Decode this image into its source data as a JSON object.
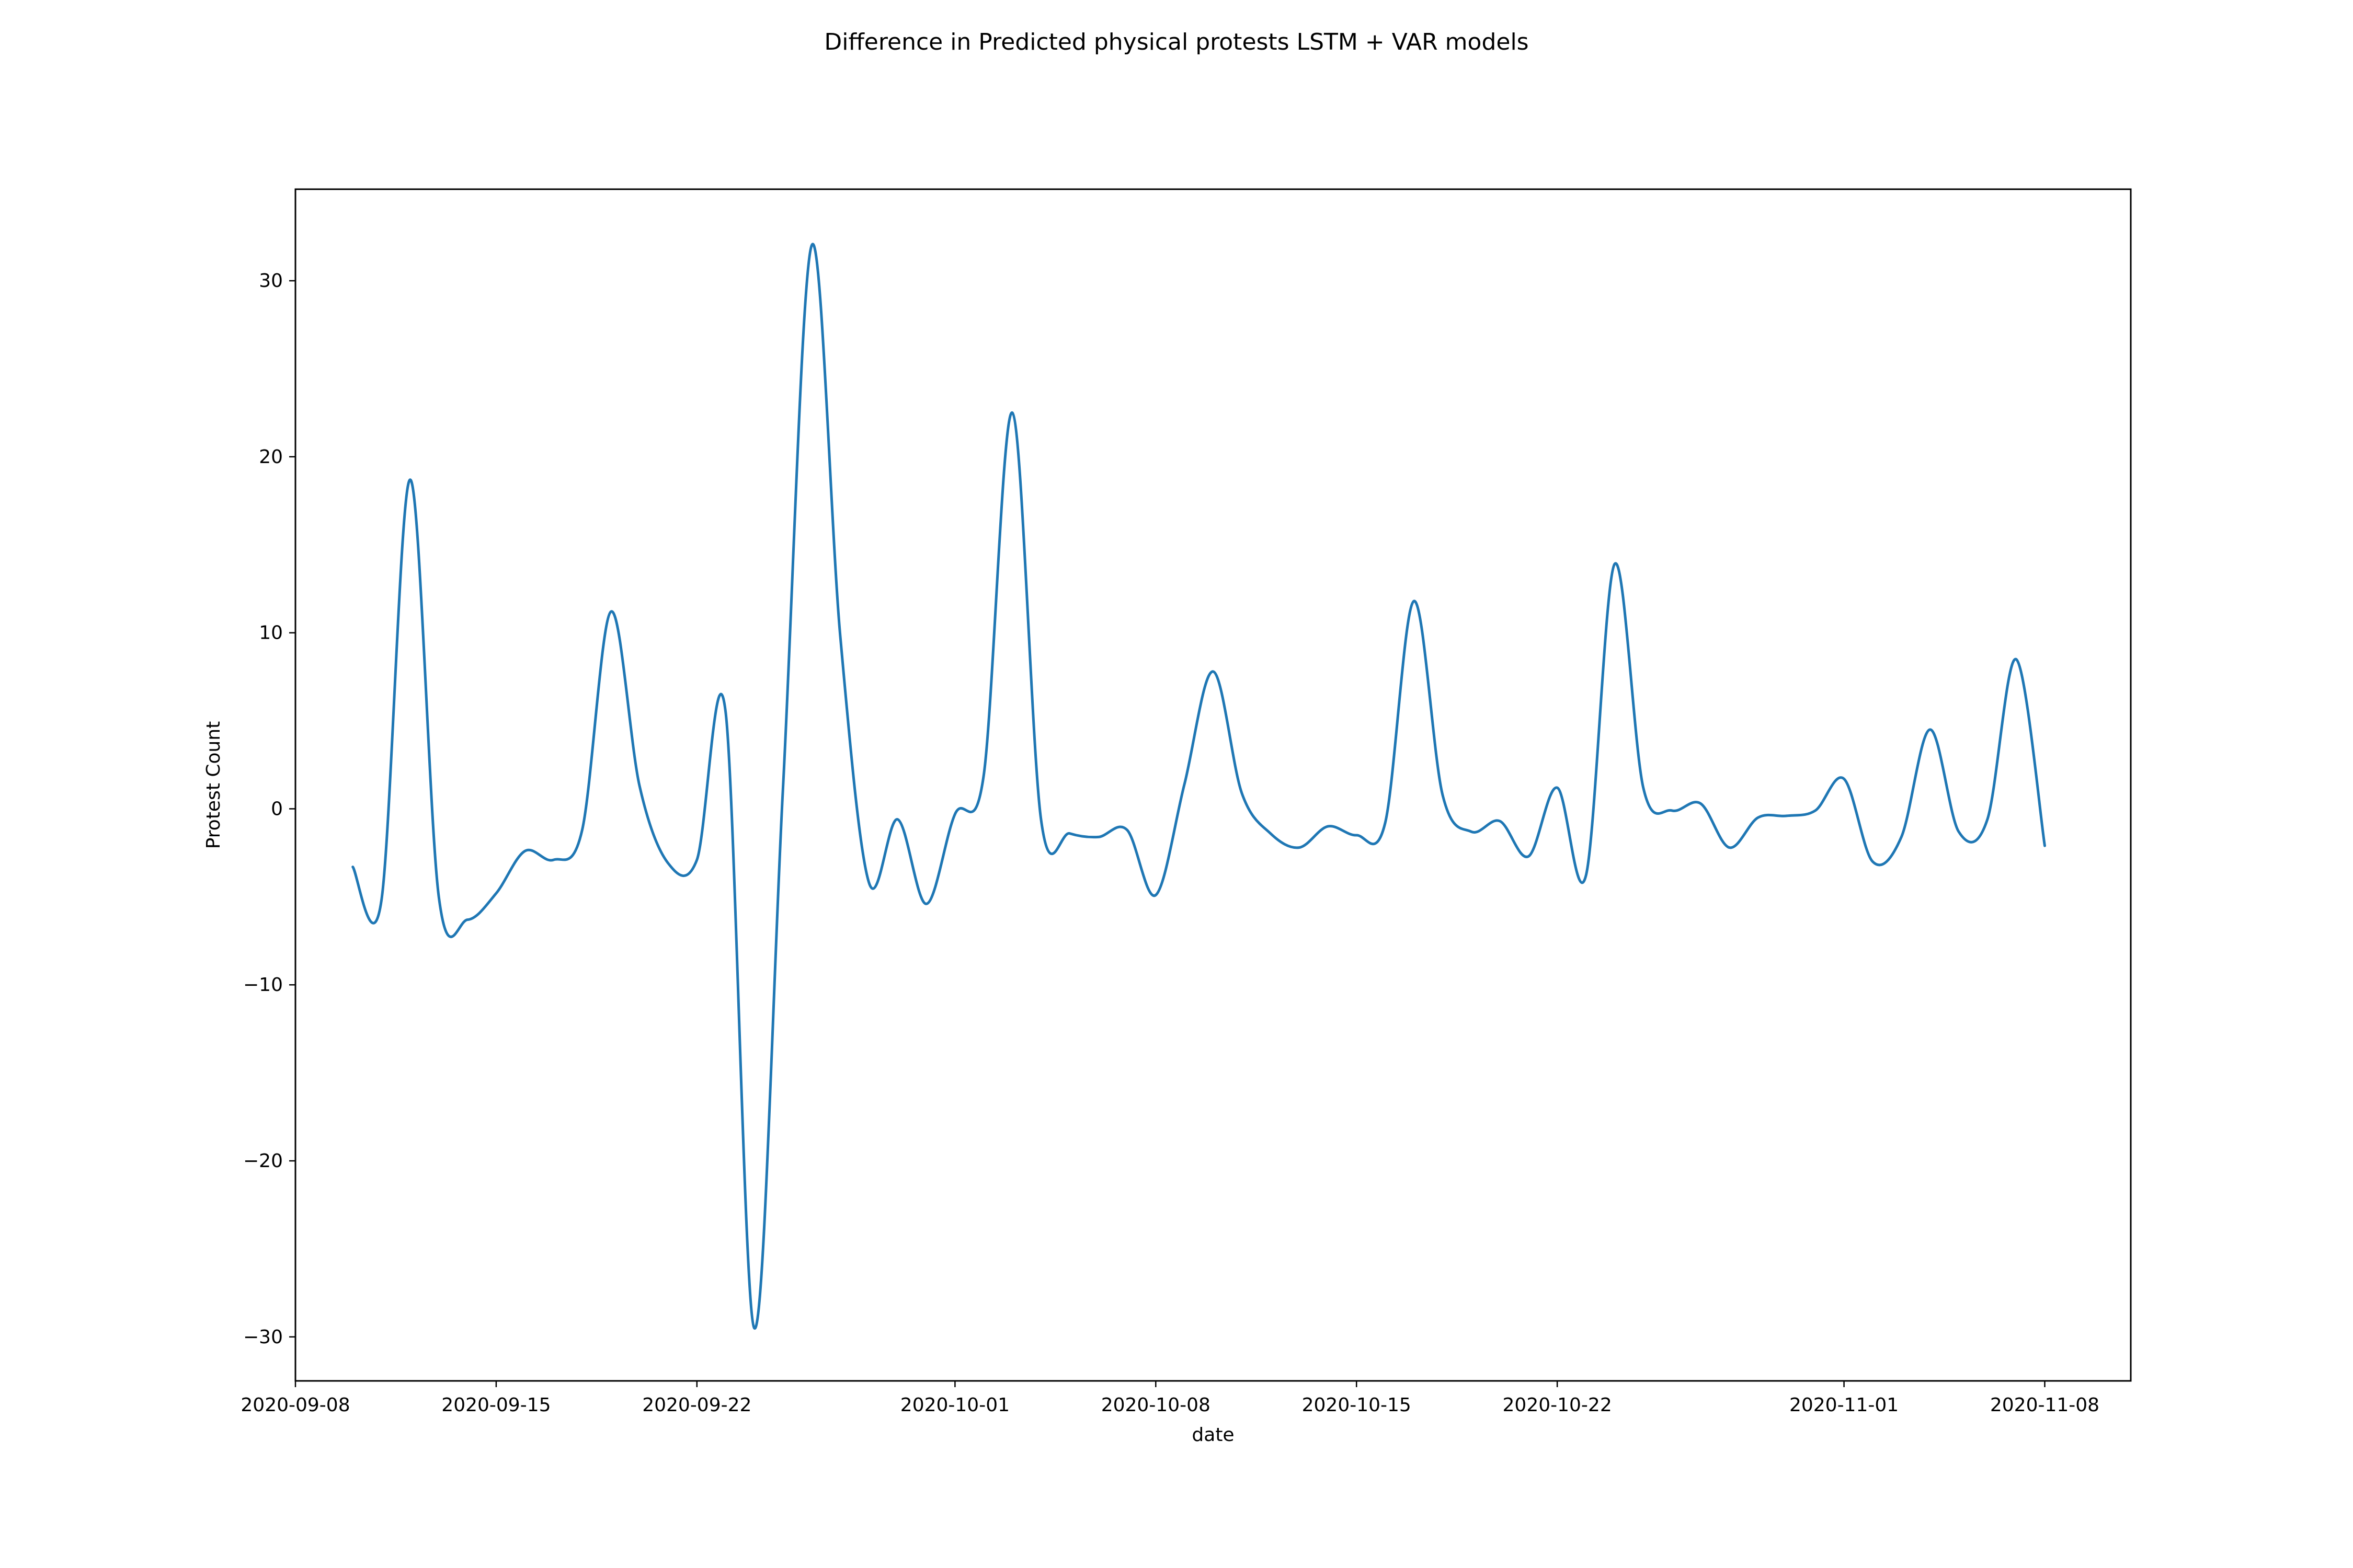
{
  "chart_data": {
    "type": "line",
    "title": "Difference in Predicted physical protests LSTM + VAR models",
    "xlabel": "date",
    "ylabel": "Protest Count",
    "xlim": [
      "2020-09-08",
      "2020-11-11"
    ],
    "ylim": [
      -32.5,
      35.2
    ],
    "x_ticks": [
      "2020-09-08",
      "2020-09-15",
      "2020-09-22",
      "2020-10-01",
      "2020-10-08",
      "2020-10-15",
      "2020-10-22",
      "2020-11-01",
      "2020-11-08"
    ],
    "y_ticks": [
      -30,
      -20,
      -10,
      0,
      10,
      20,
      30
    ],
    "y_tick_labels": [
      "−30",
      "−20",
      "−10",
      "0",
      "10",
      "20",
      "30"
    ],
    "grid": false,
    "line_color": "#1f77b4",
    "series": [
      {
        "x": [
          "2020-09-10",
          "2020-09-11",
          "2020-09-12",
          "2020-09-13",
          "2020-09-14",
          "2020-09-15",
          "2020-09-16",
          "2020-09-17",
          "2020-09-18",
          "2020-09-19",
          "2020-09-20",
          "2020-09-21",
          "2020-09-22",
          "2020-09-23",
          "2020-09-24",
          "2020-09-25",
          "2020-09-26",
          "2020-09-27",
          "2020-09-28",
          "2020-09-29",
          "2020-09-30",
          "2020-10-01",
          "2020-10-02",
          "2020-10-03",
          "2020-10-04",
          "2020-10-05",
          "2020-10-06",
          "2020-10-07",
          "2020-10-08",
          "2020-10-09",
          "2020-10-10",
          "2020-10-11",
          "2020-10-12",
          "2020-10-13",
          "2020-10-14",
          "2020-10-15",
          "2020-10-16",
          "2020-10-17",
          "2020-10-18",
          "2020-10-19",
          "2020-10-20",
          "2020-10-21",
          "2020-10-22",
          "2020-10-23",
          "2020-10-24",
          "2020-10-25",
          "2020-10-26",
          "2020-10-27",
          "2020-10-28",
          "2020-10-29",
          "2020-10-30",
          "2020-10-31",
          "2020-11-01",
          "2020-11-02",
          "2020-11-03",
          "2020-11-04",
          "2020-11-05",
          "2020-11-06",
          "2020-11-07",
          "2020-11-08"
        ],
        "values": [
          -3.3,
          -5.2,
          18.7,
          -5.0,
          -6.3,
          -4.8,
          -2.4,
          -2.9,
          -1.2,
          11.2,
          1.3,
          -3.1,
          -2.9,
          5.5,
          -29.5,
          1.1,
          32.0,
          9.8,
          -4.2,
          -0.6,
          -5.4,
          -0.3,
          1.9,
          22.5,
          -0.6,
          -1.4,
          -1.6,
          -1.2,
          -4.9,
          1.4,
          7.8,
          0.9,
          -1.4,
          -2.2,
          -1.0,
          -1.5,
          -0.8,
          11.8,
          0.8,
          -1.3,
          -0.7,
          -2.7,
          1.2,
          -3.8,
          13.9,
          1.2,
          -0.1,
          0.3,
          -2.2,
          -0.5,
          -0.4,
          -0.1,
          1.7,
          -3.0,
          -1.6,
          4.5,
          -1.3,
          -0.6,
          8.5,
          -2.1
        ]
      }
    ]
  }
}
